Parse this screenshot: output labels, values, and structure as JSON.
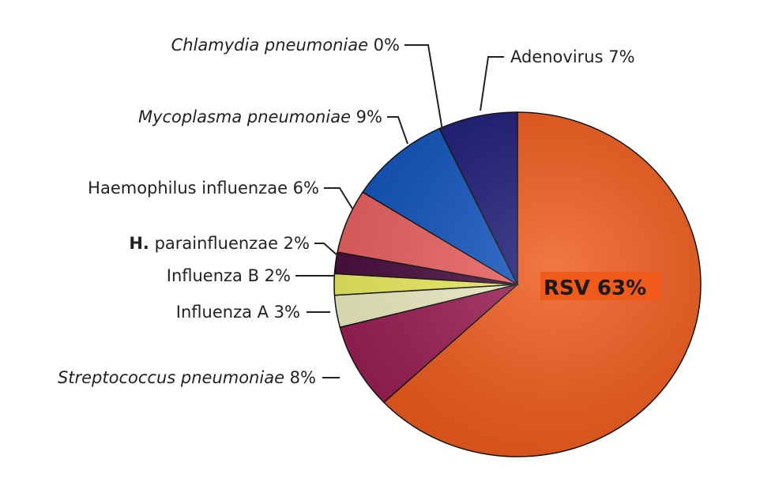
{
  "chart_data": {
    "type": "pie",
    "start_angle_deg": -90,
    "direction": "clockwise",
    "slices": [
      {
        "label": "RSV",
        "value": 63,
        "value_text": "63%",
        "color": "#F05A1A",
        "label_style": "bold-inside"
      },
      {
        "label": "Streptococcus pneumoniae",
        "value": 8,
        "value_text": "8%",
        "color": "#9C1E55",
        "label_style": "italic"
      },
      {
        "label": "Influenza A",
        "value": 3,
        "value_text": "3%",
        "color": "#EFF0C4",
        "label_style": "normal"
      },
      {
        "label": "Influenza B",
        "value": 2,
        "value_text": "2%",
        "color": "#EEEE60",
        "label_style": "normal"
      },
      {
        "label": "H. parainfluenzae",
        "value": 2,
        "value_text": "2%",
        "color": "#4A0E3E",
        "label_style": "bold-first-word"
      },
      {
        "label": "Haemophilus influenzae",
        "value": 6,
        "value_text": "6%",
        "color": "#EE6262",
        "label_style": "normal"
      },
      {
        "label": "Mycoplasma pneumoniae",
        "value": 9,
        "value_text": "9%",
        "color": "#1155C0",
        "label_style": "italic"
      },
      {
        "label": "Chlamydia pneumoniae",
        "value": 0,
        "value_text": "0%",
        "color": "#1A1A66",
        "label_style": "italic"
      },
      {
        "label": "Adenovirus",
        "value": 7,
        "value_text": "7%",
        "color": "#1C1C78",
        "label_style": "normal"
      }
    ]
  }
}
